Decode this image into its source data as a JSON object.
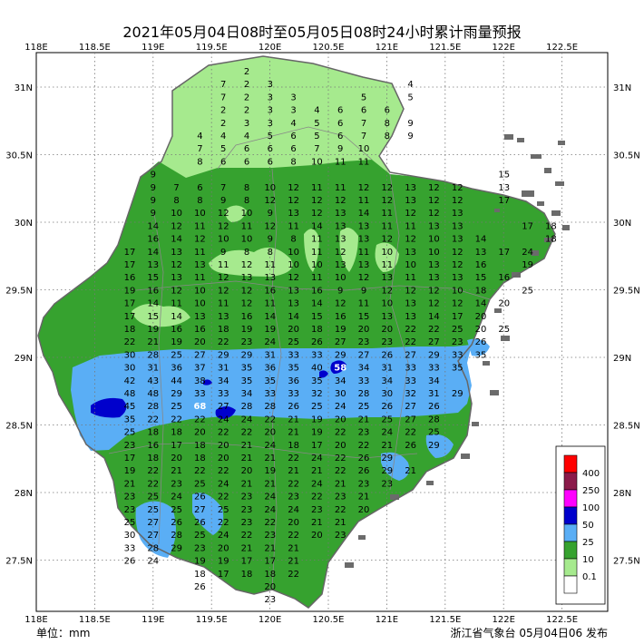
{
  "title": "2021年05月04日08时至05月05日08时24小时累计雨量预报",
  "footer": {
    "unit": "单位：mm",
    "issuer": "浙江省气象台 05月04日06 发布"
  },
  "axes": {
    "lon_ticks": [
      "118E",
      "118.5E",
      "119E",
      "119.5E",
      "120E",
      "120.5E",
      "121E",
      "121.5E",
      "122E",
      "122.5E"
    ],
    "lat_ticks": [
      "31N",
      "30.5N",
      "30N",
      "29.5N",
      "29N",
      "28.5N",
      "28N",
      "27.5N"
    ]
  },
  "legend": {
    "thresholds": [
      "400",
      "250",
      "100",
      "50",
      "25",
      "10",
      "0.1"
    ],
    "colors": [
      "#ff0000",
      "#8b1a4a",
      "#ff00ff",
      "#0000cc",
      "#5aaef5",
      "#36a22f",
      "#a6ea8e",
      "#ffffff"
    ]
  },
  "chart_data": {
    "type": "table",
    "title": "2021年05月04日08时至05月05日08时24小时累计雨量预报",
    "grid_lon_start": 118.5,
    "grid_lon_step": 0.2,
    "grid_lat_start": 31.1,
    "grid_lat_step": 0.1,
    "rows": [
      [
        "",
        "",
        "",
        "",
        "",
        "2",
        "",
        "",
        "",
        "",
        "",
        "",
        "",
        "",
        "",
        "",
        "",
        "",
        "",
        "",
        ""
      ],
      [
        "",
        "",
        "",
        "",
        "7",
        "2",
        "3",
        "",
        "",
        "",
        "",
        "",
        "4",
        "",
        "",
        "",
        "",
        "",
        "",
        "",
        ""
      ],
      [
        "",
        "",
        "",
        "",
        "7",
        "2",
        "3",
        "3",
        "",
        "",
        "5",
        "",
        "5",
        "",
        "",
        "",
        "",
        "",
        "",
        "",
        ""
      ],
      [
        "",
        "",
        "",
        "",
        "2",
        "2",
        "3",
        "3",
        "4",
        "6",
        "6",
        "6",
        "",
        "",
        "",
        "",
        "",
        "",
        "",
        "",
        ""
      ],
      [
        "",
        "",
        "",
        "",
        "2",
        "3",
        "3",
        "4",
        "5",
        "6",
        "7",
        "8",
        "9",
        "",
        "",
        "",
        "",
        "",
        "",
        "",
        ""
      ],
      [
        "",
        "",
        "",
        "4",
        "4",
        "4",
        "5",
        "6",
        "5",
        "6",
        "7",
        "8",
        "9",
        "",
        "",
        "",
        "",
        "",
        "",
        "",
        ""
      ],
      [
        "",
        "",
        "",
        "7",
        "5",
        "6",
        "6",
        "6",
        "7",
        "9",
        "10",
        "",
        "",
        "",
        "",
        "",
        "",
        "",
        "",
        "",
        ""
      ],
      [
        "",
        "",
        "",
        "8",
        "6",
        "6",
        "6",
        "8",
        "10",
        "11",
        "11",
        "",
        "",
        "",
        "",
        "",
        "",
        "",
        "",
        "",
        ""
      ],
      [
        "",
        "9",
        "",
        "",
        "",
        "",
        "",
        "",
        "",
        "",
        "",
        "",
        "",
        "",
        "",
        "",
        "15",
        "",
        "",
        "",
        ""
      ],
      [
        "",
        "9",
        "7",
        "6",
        "7",
        "8",
        "10",
        "12",
        "11",
        "11",
        "12",
        "12",
        "13",
        "12",
        "12",
        "",
        "13",
        "",
        "",
        "",
        ""
      ],
      [
        "",
        "9",
        "8",
        "8",
        "9",
        "8",
        "12",
        "12",
        "12",
        "12",
        "11",
        "12",
        "13",
        "12",
        "12",
        "",
        "17",
        "",
        "",
        "",
        ""
      ],
      [
        "",
        "9",
        "10",
        "10",
        "12",
        "10",
        "9",
        "13",
        "12",
        "13",
        "14",
        "11",
        "12",
        "12",
        "13",
        "",
        "",
        "",
        "",
        "",
        ""
      ],
      [
        "",
        "14",
        "12",
        "11",
        "12",
        "11",
        "12",
        "11",
        "14",
        "13",
        "13",
        "11",
        "11",
        "13",
        "13",
        "",
        "",
        "17",
        "18",
        "",
        ""
      ],
      [
        "",
        "16",
        "14",
        "12",
        "10",
        "10",
        "9",
        "8",
        "11",
        "13",
        "13",
        "12",
        "12",
        "10",
        "13",
        "14",
        "",
        "",
        "18",
        "",
        ""
      ],
      [
        "17",
        "14",
        "13",
        "11",
        "9",
        "8",
        "8",
        "10",
        "11",
        "12",
        "11",
        "10",
        "13",
        "10",
        "12",
        "13",
        "17",
        "24",
        "",
        "",
        ""
      ],
      [
        "17",
        "13",
        "12",
        "13",
        "11",
        "12",
        "11",
        "10",
        "10",
        "13",
        "13",
        "11",
        "10",
        "13",
        "12",
        "16",
        "",
        "19",
        "",
        "",
        ""
      ],
      [
        "16",
        "15",
        "13",
        "11",
        "12",
        "13",
        "13",
        "12",
        "11",
        "10",
        "12",
        "13",
        "11",
        "13",
        "13",
        "15",
        "16",
        "",
        "",
        "",
        ""
      ],
      [
        "19",
        "16",
        "12",
        "10",
        "12",
        "12",
        "16",
        "13",
        "16",
        "9",
        "9",
        "12",
        "12",
        "12",
        "10",
        "18",
        "",
        "25",
        "",
        "",
        ""
      ],
      [
        "17",
        "14",
        "11",
        "10",
        "11",
        "12",
        "11",
        "13",
        "14",
        "12",
        "11",
        "10",
        "13",
        "12",
        "12",
        "14",
        "20",
        "",
        "",
        "",
        ""
      ],
      [
        "17",
        "15",
        "14",
        "13",
        "13",
        "16",
        "14",
        "14",
        "15",
        "16",
        "15",
        "13",
        "13",
        "14",
        "17",
        "20",
        "",
        "",
        "",
        "",
        ""
      ],
      [
        "18",
        "19",
        "16",
        "16",
        "18",
        "19",
        "19",
        "20",
        "18",
        "19",
        "20",
        "20",
        "22",
        "22",
        "25",
        "20",
        "25",
        "",
        "",
        "",
        ""
      ],
      [
        "22",
        "21",
        "19",
        "20",
        "22",
        "23",
        "24",
        "25",
        "26",
        "27",
        "23",
        "23",
        "22",
        "27",
        "23",
        "26",
        "",
        "",
        "",
        "",
        ""
      ],
      [
        "30",
        "28",
        "25",
        "27",
        "29",
        "29",
        "31",
        "33",
        "33",
        "29",
        "27",
        "26",
        "27",
        "29",
        "33",
        "35",
        "",
        "",
        "",
        "",
        ""
      ],
      [
        "30",
        "31",
        "36",
        "37",
        "31",
        "35",
        "36",
        "35",
        "40",
        "58",
        "34",
        "31",
        "33",
        "33",
        "35",
        "",
        "",
        "",
        "",
        "",
        ""
      ],
      [
        "42",
        "43",
        "44",
        "38",
        "34",
        "35",
        "35",
        "36",
        "35",
        "34",
        "33",
        "34",
        "33",
        "34",
        "",
        "",
        "",
        "",
        "",
        "",
        ""
      ],
      [
        "48",
        "48",
        "29",
        "33",
        "33",
        "34",
        "33",
        "33",
        "32",
        "30",
        "28",
        "30",
        "32",
        "31",
        "29",
        "",
        "",
        "",
        "",
        "",
        ""
      ],
      [
        "45",
        "28",
        "25",
        "68",
        "27",
        "28",
        "28",
        "26",
        "25",
        "24",
        "25",
        "26",
        "27",
        "26",
        "",
        "",
        "",
        "",
        "",
        "",
        ""
      ],
      [
        "35",
        "22",
        "22",
        "22",
        "24",
        "24",
        "22",
        "21",
        "19",
        "20",
        "21",
        "25",
        "27",
        "28",
        "",
        "",
        "",
        "",
        "",
        "",
        ""
      ],
      [
        "25",
        "18",
        "18",
        "20",
        "22",
        "22",
        "20",
        "21",
        "19",
        "22",
        "23",
        "24",
        "22",
        "25",
        "",
        "",
        "",
        "",
        "",
        "",
        ""
      ],
      [
        "23",
        "16",
        "17",
        "18",
        "20",
        "21",
        "24",
        "18",
        "17",
        "20",
        "22",
        "21",
        "26",
        "29",
        "",
        "",
        "",
        "",
        "",
        "",
        ""
      ],
      [
        "17",
        "18",
        "20",
        "18",
        "20",
        "21",
        "21",
        "22",
        "24",
        "22",
        "26",
        "29",
        "",
        "",
        "",
        "",
        "",
        "",
        "",
        "",
        ""
      ],
      [
        "19",
        "22",
        "21",
        "22",
        "22",
        "20",
        "19",
        "21",
        "21",
        "22",
        "26",
        "29",
        "21",
        "",
        "",
        "",
        "",
        "",
        "",
        "",
        ""
      ],
      [
        "21",
        "22",
        "23",
        "25",
        "24",
        "21",
        "21",
        "22",
        "24",
        "21",
        "23",
        "23",
        "",
        "",
        "",
        "",
        "",
        "",
        "",
        "",
        ""
      ],
      [
        "23",
        "25",
        "24",
        "26",
        "22",
        "23",
        "24",
        "23",
        "22",
        "23",
        "21",
        "",
        "",
        "",
        "",
        "",
        "",
        "",
        "",
        "",
        ""
      ],
      [
        "23",
        "25",
        "25",
        "27",
        "25",
        "23",
        "24",
        "24",
        "23",
        "22",
        "20",
        "",
        "",
        "",
        "",
        "",
        "",
        "",
        "",
        "",
        ""
      ],
      [
        "25",
        "27",
        "26",
        "26",
        "22",
        "23",
        "22",
        "20",
        "21",
        "21",
        "",
        "",
        "",
        "",
        "",
        "",
        "",
        "",
        "",
        "",
        ""
      ],
      [
        "30",
        "27",
        "28",
        "25",
        "24",
        "22",
        "23",
        "22",
        "20",
        "23",
        "",
        "",
        "",
        "",
        "",
        "",
        "",
        "",
        "",
        "",
        ""
      ],
      [
        "33",
        "28",
        "29",
        "23",
        "20",
        "21",
        "21",
        "21",
        "",
        "",
        "",
        "",
        "",
        "",
        "",
        "",
        "",
        "",
        "",
        "",
        ""
      ],
      [
        "26",
        "24",
        "",
        "19",
        "19",
        "17",
        "17",
        "21",
        "",
        "",
        "",
        "",
        "",
        "",
        "",
        "",
        "",
        "",
        "",
        "",
        ""
      ],
      [
        "",
        "",
        "",
        "18",
        "17",
        "18",
        "18",
        "22",
        "",
        "",
        "",
        "",
        "",
        "",
        "",
        "",
        "",
        "",
        "",
        "",
        ""
      ],
      [
        "",
        "",
        "",
        "26",
        "",
        "",
        "20",
        "",
        "",
        "",
        "",
        "",
        "",
        "",
        "",
        "",
        "",
        "",
        "",
        "",
        ""
      ],
      [
        "",
        "",
        "",
        "",
        "",
        "",
        "23",
        "",
        "",
        "",
        "",
        "",
        "",
        "",
        "",
        "",
        "",
        "",
        "",
        "",
        ""
      ]
    ],
    "unit": "mm"
  }
}
